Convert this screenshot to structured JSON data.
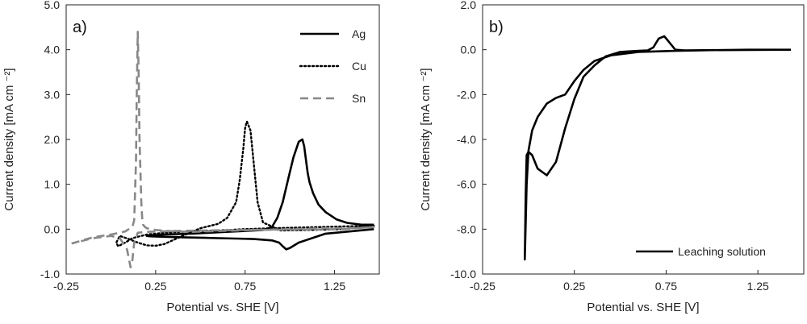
{
  "chart_data": [
    {
      "type": "line",
      "panel_label": "a)",
      "xlabel": "Potential vs. SHE [V]",
      "ylabel": "Current density [mA cm ⁻²]",
      "xlim": [
        -0.25,
        1.5
      ],
      "ylim": [
        -1.0,
        5.0
      ],
      "xticks": [
        -0.25,
        0.25,
        0.75,
        1.25
      ],
      "xtick_labels": [
        "-0.25",
        "0.25",
        "0.75",
        "1.25"
      ],
      "yticks": [
        -1.0,
        0.0,
        1.0,
        2.0,
        3.0,
        4.0,
        5.0
      ],
      "ytick_labels": [
        "-1.0",
        "0.0",
        "1.0",
        "2.0",
        "3.0",
        "4.0",
        "5.0"
      ],
      "legend_position": "top-right",
      "series": [
        {
          "name": "Ag",
          "style": "solid",
          "color": "#000000",
          "x": [
            1.47,
            1.2,
            1.05,
            1.0,
            0.98,
            0.96,
            0.94,
            0.9,
            0.8,
            0.7,
            0.6,
            0.5,
            0.4,
            0.3,
            0.22,
            0.2,
            0.3,
            0.45,
            0.6,
            0.75,
            0.85,
            0.9,
            0.93,
            0.96,
            0.99,
            1.02,
            1.05,
            1.07,
            1.08,
            1.09,
            1.1,
            1.11,
            1.13,
            1.16,
            1.2,
            1.26,
            1.32,
            1.4,
            1.47
          ],
          "y": [
            0.0,
            -0.1,
            -0.3,
            -0.42,
            -0.45,
            -0.38,
            -0.3,
            -0.25,
            -0.22,
            -0.21,
            -0.2,
            -0.19,
            -0.18,
            -0.17,
            -0.16,
            -0.15,
            -0.12,
            -0.1,
            -0.07,
            -0.04,
            -0.02,
            0.05,
            0.25,
            0.6,
            1.1,
            1.6,
            1.95,
            2.0,
            1.85,
            1.55,
            1.25,
            1.05,
            0.8,
            0.55,
            0.38,
            0.22,
            0.14,
            0.1,
            0.1
          ]
        },
        {
          "name": "Cu",
          "style": "dotted",
          "color": "#000000",
          "x": [
            1.47,
            1.3,
            1.1,
            0.95,
            0.85,
            0.82,
            0.8,
            0.78,
            0.76,
            0.75,
            0.74,
            0.72,
            0.7,
            0.65,
            0.6,
            0.5,
            0.4,
            0.3,
            0.25,
            0.2,
            0.15,
            0.1,
            0.05,
            0.03,
            0.04,
            0.08,
            0.12,
            0.2,
            0.3,
            0.45,
            0.6,
            0.75,
            0.9,
            1.1,
            1.3,
            1.47
          ],
          "y": [
            0.08,
            0.0,
            -0.02,
            -0.03,
            0.15,
            0.6,
            1.4,
            2.2,
            2.4,
            2.25,
            1.8,
            1.1,
            0.6,
            0.25,
            0.12,
            0.02,
            -0.15,
            -0.33,
            -0.37,
            -0.36,
            -0.3,
            -0.22,
            -0.15,
            -0.3,
            -0.38,
            -0.3,
            -0.2,
            -0.12,
            -0.08,
            -0.05,
            -0.03,
            0.0,
            0.02,
            0.04,
            0.06,
            0.08
          ]
        },
        {
          "name": "Sn",
          "style": "dashed",
          "color": "#888888",
          "x": [
            -0.22,
            -0.1,
            0.0,
            0.05,
            0.08,
            0.1,
            0.12,
            0.13,
            0.14,
            0.145,
            0.15,
            0.155,
            0.16,
            0.17,
            0.175,
            0.18,
            0.19,
            0.2,
            0.25,
            0.35,
            0.45,
            0.6,
            0.8,
            1.0,
            1.2,
            1.4,
            1.47,
            1.3,
            1.0,
            0.7,
            0.5,
            0.35,
            0.2,
            0.15,
            0.13,
            0.12,
            0.11,
            0.09,
            0.05,
            0.0,
            -0.1,
            -0.22
          ],
          "y": [
            -0.32,
            -0.18,
            -0.12,
            -0.08,
            -0.05,
            0.0,
            0.05,
            0.2,
            1.5,
            3.2,
            4.4,
            3.5,
            2.0,
            0.6,
            0.25,
            0.1,
            0.05,
            0.02,
            -0.02,
            -0.05,
            -0.06,
            -0.04,
            -0.02,
            0.0,
            0.02,
            0.03,
            0.05,
            0.0,
            -0.01,
            -0.02,
            -0.03,
            -0.04,
            -0.06,
            -0.08,
            -0.3,
            -0.7,
            -0.85,
            -0.45,
            -0.2,
            -0.15,
            -0.2,
            -0.32
          ]
        }
      ]
    },
    {
      "type": "line",
      "panel_label": "b)",
      "xlabel": "Potential vs. SHE [V]",
      "ylabel": "Current density [mA cm ⁻²]",
      "xlim": [
        -0.25,
        1.5
      ],
      "ylim": [
        -10.0,
        2.0
      ],
      "xticks": [
        -0.25,
        0.25,
        0.75,
        1.25
      ],
      "xtick_labels": [
        "-0.25",
        "0.25",
        "0.75",
        "1.25"
      ],
      "yticks": [
        -10.0,
        -8.0,
        -6.0,
        -4.0,
        -2.0,
        0.0,
        2.0
      ],
      "ytick_labels": [
        "-10.0",
        "-8.0",
        "-6.0",
        "-4.0",
        "-2.0",
        "0.0",
        "2.0"
      ],
      "legend_position": "bottom-right",
      "series": [
        {
          "name": "Leaching solution",
          "style": "solid",
          "color": "#000000",
          "x": [
            1.43,
            1.2,
            1.0,
            0.85,
            0.8,
            0.77,
            0.74,
            0.71,
            0.68,
            0.65,
            0.6,
            0.5,
            0.42,
            0.36,
            0.3,
            0.25,
            0.2,
            0.15,
            0.1,
            0.05,
            0.02,
            0.0,
            -0.01,
            -0.015,
            -0.02,
            -0.01,
            0.0,
            0.02,
            0.05,
            0.1,
            0.15,
            0.2,
            0.25,
            0.3,
            0.36,
            0.45,
            0.6,
            0.8,
            1.0,
            1.2,
            1.43
          ],
          "y": [
            0.0,
            -0.01,
            -0.02,
            -0.03,
            0.0,
            0.3,
            0.6,
            0.5,
            0.1,
            -0.03,
            -0.05,
            -0.1,
            -0.3,
            -0.7,
            -1.2,
            -2.2,
            -3.5,
            -5.0,
            -5.6,
            -5.3,
            -4.7,
            -4.55,
            -4.7,
            -6.5,
            -9.35,
            -6.0,
            -4.5,
            -3.6,
            -3.0,
            -2.4,
            -2.15,
            -2.0,
            -1.4,
            -0.9,
            -0.5,
            -0.25,
            -0.1,
            -0.05,
            -0.02,
            0.0,
            0.0
          ]
        }
      ]
    }
  ]
}
